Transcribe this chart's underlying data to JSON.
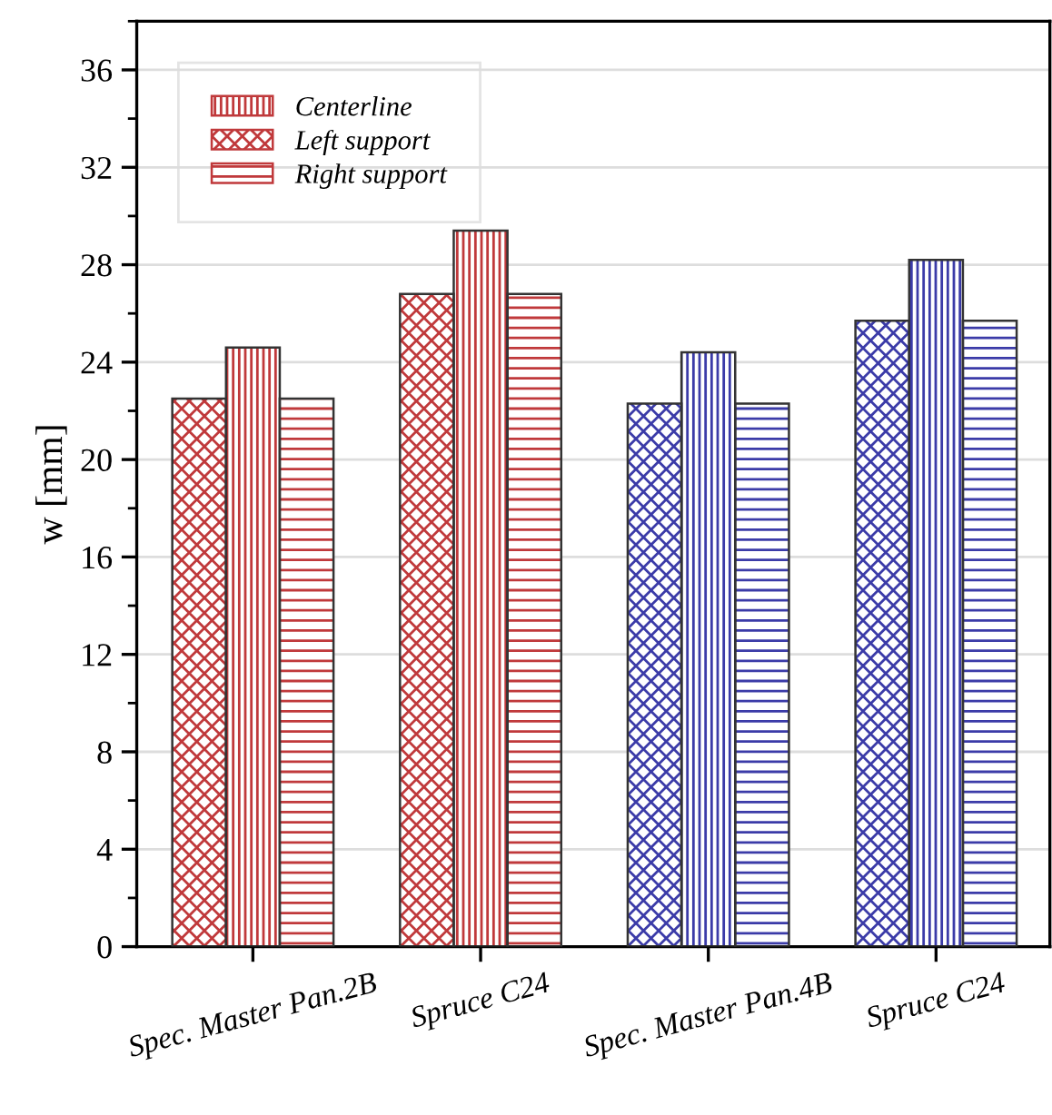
{
  "chart_data": {
    "type": "bar",
    "ylabel": "w [mm]",
    "categories": [
      "Spec. Master Pan.2B",
      "Spruce C24",
      "Spec. Master Pan.4B",
      "Spruce C24"
    ],
    "series": [
      {
        "name": "Centerline",
        "colors": [
          "#c0393b",
          "#c0393b",
          "#3b3ba8",
          "#3b3ba8"
        ],
        "values": [
          24.6,
          29.4,
          24.4,
          28.2
        ]
      },
      {
        "name": "Left support",
        "colors": [
          "#c0393b",
          "#c0393b",
          "#3b3ba8",
          "#3b3ba8"
        ],
        "values": [
          22.5,
          26.8,
          22.3,
          25.7
        ]
      },
      {
        "name": "Right support",
        "colors": [
          "#c0393b",
          "#c0393b",
          "#3b3ba8",
          "#3b3ba8"
        ],
        "values": [
          22.5,
          26.8,
          22.3,
          25.7
        ]
      }
    ],
    "ylim": [
      0,
      38
    ],
    "yticks": [
      0,
      4,
      8,
      12,
      16,
      20,
      24,
      28,
      32,
      36
    ],
    "grid": "y",
    "legend": "top left"
  }
}
